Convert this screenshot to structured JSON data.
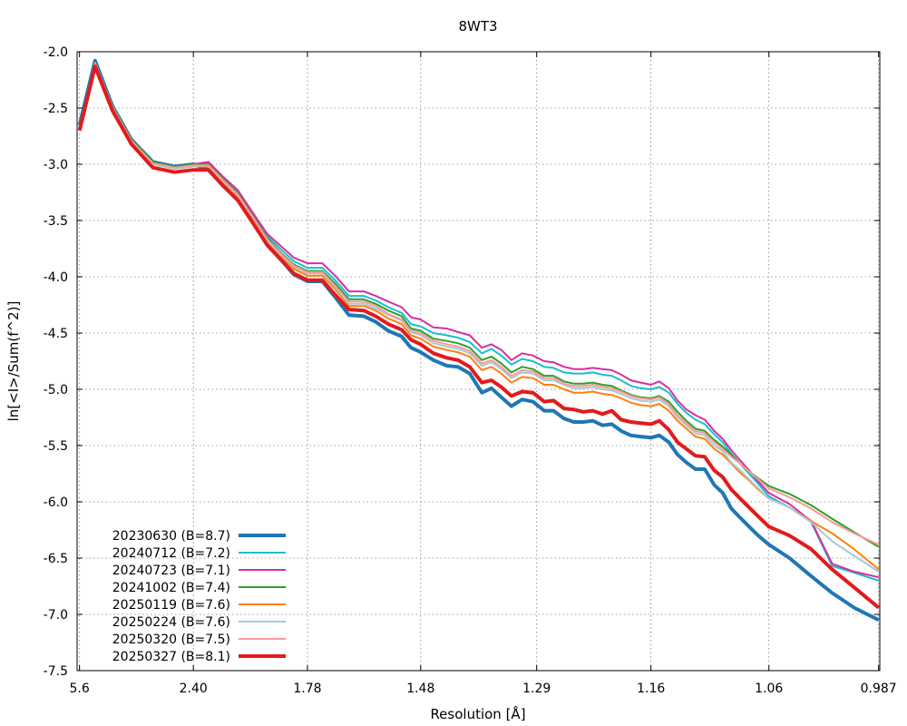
{
  "chart_data": {
    "type": "line",
    "title": "8WT3",
    "xlabel": "Resolution [Å]",
    "ylabel": "ln[<I>/Sum(f^2)]",
    "x_scale": "inverse-square-resolution",
    "x_ticks": [
      "5.6",
      "2.40",
      "1.78",
      "1.48",
      "1.29",
      "1.16",
      "1.06",
      "0.987"
    ],
    "x_tick_values": [
      5.6,
      2.4,
      1.78,
      1.48,
      1.29,
      1.16,
      1.06,
      0.987
    ],
    "ylim": [
      -7.5,
      -2.0
    ],
    "y_ticks": [
      "-2.0",
      "-2.5",
      "-3.0",
      "-3.5",
      "-4.0",
      "-4.5",
      "-5.0",
      "-5.5",
      "-6.0",
      "-6.5",
      "-7.0",
      "-7.5"
    ],
    "y_tick_values": [
      -2.0,
      -2.5,
      -3.0,
      -3.5,
      -4.0,
      -4.5,
      -5.0,
      -5.5,
      -6.0,
      -6.5,
      -7.0,
      -7.5
    ],
    "grid": true,
    "legend_position": "bottom-left",
    "x": [
      5.6,
      4.42,
      3.71,
      3.22,
      2.85,
      2.58,
      2.4,
      2.28,
      2.18,
      2.09,
      2.01,
      1.94,
      1.88,
      1.83,
      1.78,
      1.73,
      1.69,
      1.65,
      1.61,
      1.58,
      1.55,
      1.52,
      1.5,
      1.48,
      1.455,
      1.43,
      1.41,
      1.39,
      1.37,
      1.355,
      1.34,
      1.325,
      1.31,
      1.295,
      1.28,
      1.268,
      1.255,
      1.243,
      1.232,
      1.221,
      1.21,
      1.2,
      1.19,
      1.18,
      1.17,
      1.16,
      1.152,
      1.143,
      1.135,
      1.127,
      1.119,
      1.111,
      1.103,
      1.096,
      1.089,
      1.082,
      1.075,
      1.068,
      1.06,
      1.045,
      1.03,
      1.016,
      1.002,
      0.987
    ],
    "series": [
      {
        "name": "20230630 (B=8.7)",
        "color": "#1f77b4",
        "width": 4,
        "values": [
          -2.65,
          -2.08,
          -2.48,
          -2.78,
          -2.98,
          -3.02,
          -3.0,
          -3.05,
          -3.18,
          -3.3,
          -3.5,
          -3.72,
          -3.85,
          -3.98,
          -4.04,
          -4.04,
          -4.18,
          -4.34,
          -4.35,
          -4.4,
          -4.48,
          -4.53,
          -4.63,
          -4.67,
          -4.74,
          -4.79,
          -4.8,
          -4.86,
          -5.03,
          -4.99,
          -5.07,
          -5.15,
          -5.09,
          -5.11,
          -5.19,
          -5.19,
          -5.26,
          -5.29,
          -5.29,
          -5.28,
          -5.32,
          -5.31,
          -5.37,
          -5.41,
          -5.42,
          -5.43,
          -5.41,
          -5.47,
          -5.58,
          -5.65,
          -5.71,
          -5.71,
          -5.85,
          -5.92,
          -6.06,
          -6.14,
          -6.22,
          -6.3,
          -6.38,
          -6.5,
          -6.66,
          -6.81,
          -6.94,
          -7.05
        ]
      },
      {
        "name": "20240712 (B=7.2)",
        "color": "#17becf",
        "width": 2,
        "values": [
          -2.66,
          -2.1,
          -2.48,
          -2.78,
          -2.98,
          -3.02,
          -3.0,
          -2.99,
          -3.12,
          -3.24,
          -3.44,
          -3.64,
          -3.76,
          -3.86,
          -3.92,
          -3.92,
          -4.03,
          -4.17,
          -4.17,
          -4.21,
          -4.27,
          -4.32,
          -4.42,
          -4.44,
          -4.5,
          -4.52,
          -4.54,
          -4.58,
          -4.68,
          -4.64,
          -4.7,
          -4.78,
          -4.73,
          -4.75,
          -4.8,
          -4.81,
          -4.85,
          -4.86,
          -4.86,
          -4.85,
          -4.87,
          -4.88,
          -4.92,
          -4.97,
          -4.99,
          -5.0,
          -4.98,
          -5.03,
          -5.13,
          -5.21,
          -5.27,
          -5.31,
          -5.4,
          -5.47,
          -5.57,
          -5.66,
          -5.75,
          -5.84,
          -5.95,
          -6.05,
          -6.18,
          -6.57,
          -6.63,
          -6.7
        ]
      },
      {
        "name": "20240723 (B=7.1)",
        "color": "#d62fa0",
        "width": 2,
        "values": [
          -2.66,
          -2.1,
          -2.48,
          -2.78,
          -2.98,
          -3.02,
          -3.0,
          -2.98,
          -3.11,
          -3.23,
          -3.43,
          -3.62,
          -3.73,
          -3.83,
          -3.88,
          -3.88,
          -3.99,
          -4.13,
          -4.13,
          -4.17,
          -4.22,
          -4.27,
          -4.36,
          -4.38,
          -4.45,
          -4.46,
          -4.49,
          -4.52,
          -4.63,
          -4.6,
          -4.65,
          -4.74,
          -4.68,
          -4.7,
          -4.75,
          -4.76,
          -4.8,
          -4.82,
          -4.82,
          -4.81,
          -4.82,
          -4.83,
          -4.87,
          -4.92,
          -4.94,
          -4.96,
          -4.93,
          -4.99,
          -5.1,
          -5.18,
          -5.23,
          -5.27,
          -5.37,
          -5.44,
          -5.54,
          -5.63,
          -5.72,
          -5.82,
          -5.92,
          -6.02,
          -6.17,
          -6.55,
          -6.62,
          -6.67
        ]
      },
      {
        "name": "20241002 (B=7.4)",
        "color": "#2ca02c",
        "width": 2,
        "values": [
          -2.66,
          -2.1,
          -2.48,
          -2.78,
          -2.98,
          -3.02,
          -3.0,
          -3.0,
          -3.13,
          -3.26,
          -3.46,
          -3.66,
          -3.79,
          -3.89,
          -3.95,
          -3.95,
          -4.06,
          -4.2,
          -4.2,
          -4.24,
          -4.3,
          -4.35,
          -4.46,
          -4.48,
          -4.55,
          -4.57,
          -4.59,
          -4.63,
          -4.74,
          -4.71,
          -4.77,
          -4.85,
          -4.8,
          -4.82,
          -4.88,
          -4.88,
          -4.93,
          -4.95,
          -4.95,
          -4.94,
          -4.96,
          -4.97,
          -5.01,
          -5.05,
          -5.07,
          -5.08,
          -5.06,
          -5.11,
          -5.2,
          -5.28,
          -5.35,
          -5.37,
          -5.45,
          -5.51,
          -5.58,
          -5.66,
          -5.73,
          -5.79,
          -5.86,
          -5.93,
          -6.03,
          -6.15,
          -6.27,
          -6.4
        ]
      },
      {
        "name": "20250119 (B=7.6)",
        "color": "#ff7f0e",
        "width": 2,
        "values": [
          -2.68,
          -2.11,
          -2.5,
          -2.8,
          -3.0,
          -3.04,
          -3.02,
          -3.02,
          -3.16,
          -3.29,
          -3.48,
          -3.69,
          -3.82,
          -3.93,
          -3.99,
          -3.99,
          -4.11,
          -4.26,
          -4.26,
          -4.3,
          -4.37,
          -4.42,
          -4.52,
          -4.55,
          -4.62,
          -4.65,
          -4.67,
          -4.71,
          -4.83,
          -4.8,
          -4.86,
          -4.94,
          -4.89,
          -4.9,
          -4.96,
          -4.96,
          -5.0,
          -5.03,
          -5.03,
          -5.02,
          -5.04,
          -5.05,
          -5.08,
          -5.12,
          -5.14,
          -5.15,
          -5.13,
          -5.19,
          -5.28,
          -5.35,
          -5.42,
          -5.44,
          -5.53,
          -5.58,
          -5.66,
          -5.74,
          -5.81,
          -5.89,
          -5.97,
          -6.05,
          -6.17,
          -6.28,
          -6.42,
          -6.6
        ]
      },
      {
        "name": "20250224 (B=7.6)",
        "color": "#a8c8d8",
        "width": 2,
        "values": [
          -2.68,
          -2.11,
          -2.5,
          -2.8,
          -3.0,
          -3.04,
          -3.02,
          -3.01,
          -3.15,
          -3.28,
          -3.47,
          -3.68,
          -3.81,
          -3.91,
          -3.97,
          -3.97,
          -4.09,
          -4.24,
          -4.24,
          -4.28,
          -4.34,
          -4.39,
          -4.49,
          -4.52,
          -4.59,
          -4.62,
          -4.64,
          -4.68,
          -4.79,
          -4.76,
          -4.82,
          -4.9,
          -4.85,
          -4.86,
          -4.92,
          -4.92,
          -4.96,
          -4.99,
          -4.99,
          -4.98,
          -5.0,
          -5.01,
          -5.04,
          -5.08,
          -5.1,
          -5.11,
          -5.09,
          -5.15,
          -5.25,
          -5.32,
          -5.39,
          -5.41,
          -5.5,
          -5.55,
          -5.65,
          -5.72,
          -5.8,
          -5.88,
          -5.97,
          -6.05,
          -6.18,
          -6.35,
          -6.48,
          -6.62
        ]
      },
      {
        "name": "20250320 (B=7.5)",
        "color": "#ff9896",
        "width": 2,
        "values": [
          -2.67,
          -2.1,
          -2.49,
          -2.79,
          -2.99,
          -3.03,
          -3.01,
          -3.01,
          -3.14,
          -3.27,
          -3.47,
          -3.67,
          -3.8,
          -3.9,
          -3.96,
          -3.96,
          -4.08,
          -4.22,
          -4.22,
          -4.26,
          -4.33,
          -4.38,
          -4.48,
          -4.5,
          -4.57,
          -4.6,
          -4.62,
          -4.66,
          -4.77,
          -4.74,
          -4.8,
          -4.88,
          -4.83,
          -4.84,
          -4.9,
          -4.9,
          -4.95,
          -4.97,
          -4.97,
          -4.96,
          -4.98,
          -4.99,
          -5.02,
          -5.06,
          -5.08,
          -5.09,
          -5.07,
          -5.13,
          -5.23,
          -5.3,
          -5.37,
          -5.39,
          -5.47,
          -5.53,
          -5.6,
          -5.66,
          -5.73,
          -5.8,
          -5.88,
          -5.96,
          -6.06,
          -6.18,
          -6.28,
          -6.38
        ]
      },
      {
        "name": "20250327 (B=8.1)",
        "color": "#e31a1c",
        "width": 4,
        "values": [
          -2.7,
          -2.13,
          -2.52,
          -2.82,
          -3.03,
          -3.07,
          -3.05,
          -3.05,
          -3.19,
          -3.32,
          -3.52,
          -3.72,
          -3.85,
          -3.97,
          -4.03,
          -4.03,
          -4.16,
          -4.29,
          -4.3,
          -4.35,
          -4.42,
          -4.47,
          -4.56,
          -4.6,
          -4.68,
          -4.72,
          -4.74,
          -4.8,
          -4.94,
          -4.92,
          -4.98,
          -5.06,
          -5.02,
          -5.03,
          -5.11,
          -5.1,
          -5.17,
          -5.18,
          -5.2,
          -5.19,
          -5.22,
          -5.19,
          -5.27,
          -5.29,
          -5.3,
          -5.31,
          -5.28,
          -5.36,
          -5.47,
          -5.53,
          -5.59,
          -5.6,
          -5.72,
          -5.78,
          -5.89,
          -5.97,
          -6.05,
          -6.13,
          -6.22,
          -6.3,
          -6.42,
          -6.6,
          -6.76,
          -6.94
        ]
      }
    ]
  }
}
